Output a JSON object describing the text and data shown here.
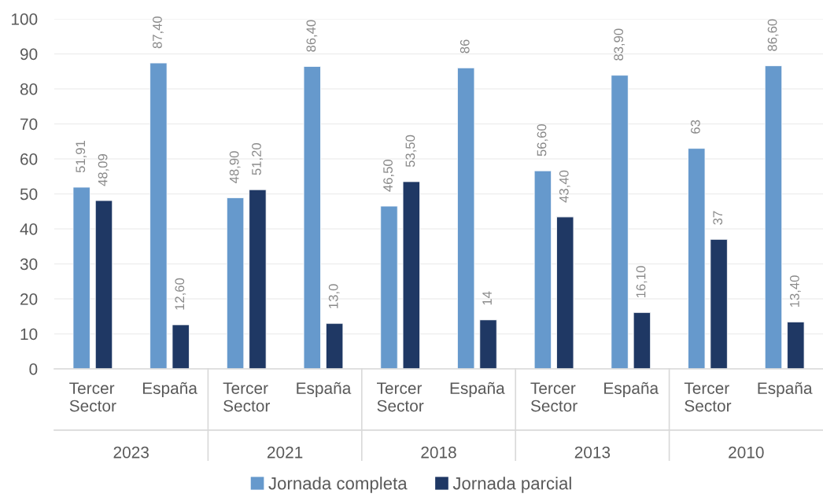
{
  "chart_data": {
    "type": "bar",
    "categories": [
      "Tercer Sector",
      "España",
      "Tercer Sector",
      "España",
      "Tercer Sector",
      "España",
      "Tercer Sector",
      "España",
      "Tercer Sector",
      "España"
    ],
    "series": [
      {
        "name": "Jornada completa",
        "color": "#6699cc",
        "values": [
          51.91,
          87.4,
          48.9,
          86.4,
          46.5,
          86,
          56.6,
          83.9,
          63,
          86.6
        ],
        "value_labels": [
          "51,91",
          "87,40",
          "48,90",
          "86,40",
          "46,50",
          "86",
          "56,60",
          "83,90",
          "63",
          "86,60"
        ]
      },
      {
        "name": "Jornada parcial",
        "color": "#1f3864",
        "values": [
          48.09,
          12.6,
          51.2,
          13.0,
          53.5,
          14,
          43.4,
          16.1,
          37,
          13.4
        ],
        "value_labels": [
          "48,09",
          "12,60",
          "51,20",
          "13,0",
          "53,50",
          "14",
          "43,40",
          "16,10",
          "37",
          "13,40"
        ]
      }
    ],
    "ylim": [
      0,
      100
    ],
    "yticks": [
      0,
      10,
      20,
      30,
      40,
      50,
      60,
      70,
      80,
      90,
      100
    ],
    "grid": "y",
    "legend": "bottom",
    "annotations": [
      "2023",
      "2021",
      "2018",
      "2013",
      "2010"
    ]
  }
}
